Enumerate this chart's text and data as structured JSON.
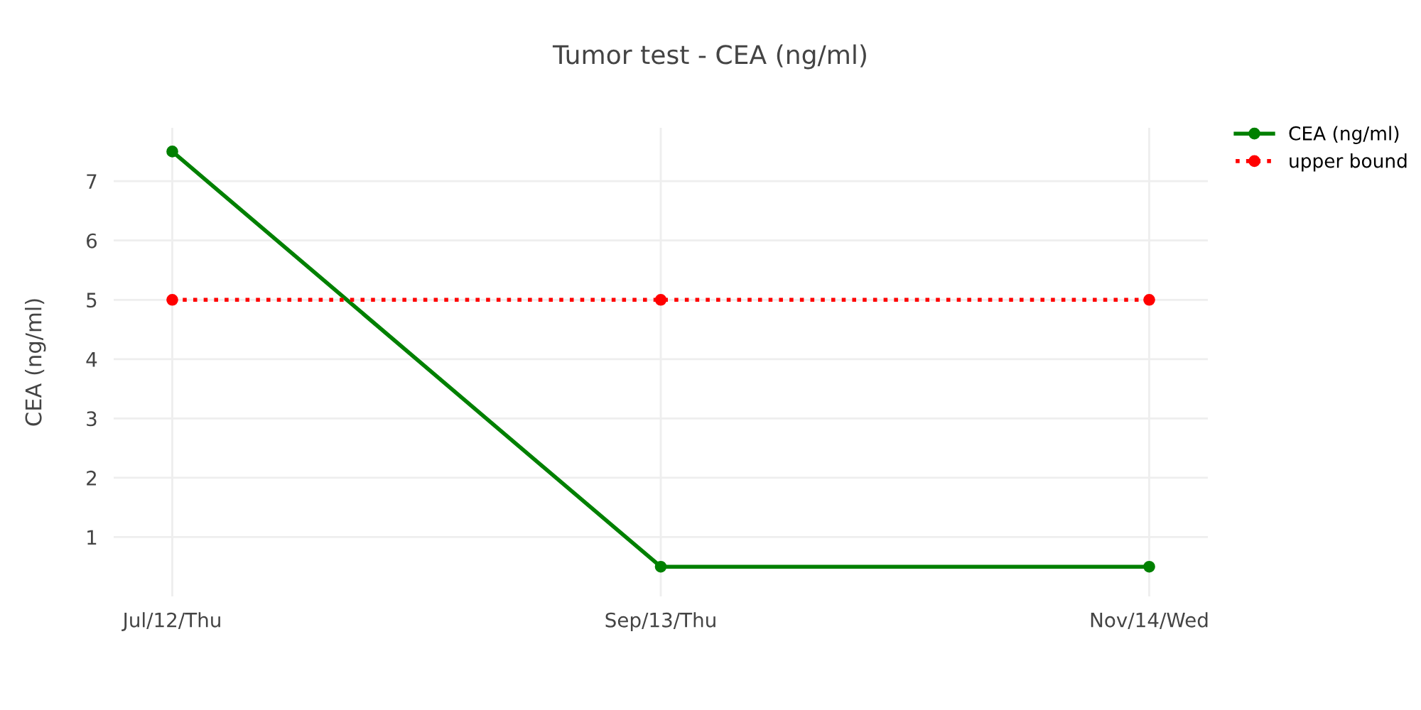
{
  "chart_data": {
    "type": "line",
    "title": "Tumor test - CEA (ng/ml)",
    "ylabel": "CEA (ng/ml)",
    "categories": [
      "Jul/12/Thu",
      "Sep/13/Thu",
      "Nov/14/Wed"
    ],
    "series": [
      {
        "name": "CEA (ng/ml)",
        "color": "#008000",
        "values": [
          7.5,
          0.5,
          0.5
        ],
        "line_style": "solid"
      },
      {
        "name": "upper bound",
        "color": "#ff0000",
        "values": [
          5,
          5,
          5
        ],
        "line_style": "dotted"
      }
    ],
    "ylim": [
      0,
      7.9
    ],
    "yticks": [
      1,
      2,
      3,
      4,
      5,
      6,
      7
    ],
    "grid": true,
    "legend": "top right",
    "marker": "circle"
  }
}
